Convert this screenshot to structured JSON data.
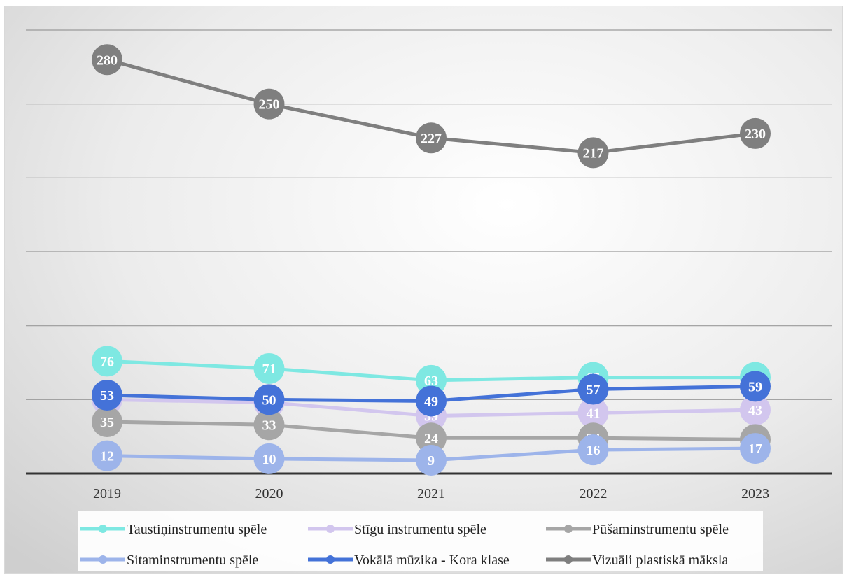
{
  "chart_data": {
    "type": "line",
    "title": "",
    "xlabel": "",
    "ylabel": "",
    "categories": [
      "2019",
      "2020",
      "2021",
      "2022",
      "2023"
    ],
    "ylim": [
      0,
      300
    ],
    "grid": true,
    "legend_position": "bottom",
    "series": [
      {
        "name": "Taustiņinstrumentu spēle",
        "values": [
          76,
          71,
          63,
          65,
          65
        ],
        "color": "#7ee8e2"
      },
      {
        "name": "Stīgu instrumentu spēle",
        "values": [
          50,
          48,
          39,
          41,
          43
        ],
        "color": "#d2c6ee"
      },
      {
        "name": "Pūšaminstrumentu spēle",
        "values": [
          35,
          33,
          24,
          24,
          23
        ],
        "color": "#a6a6a6"
      },
      {
        "name": "Sitaminstrumentu spēle",
        "values": [
          12,
          10,
          9,
          16,
          17
        ],
        "color": "#9db4ea"
      },
      {
        "name": "Vokālā mūzika - Kora klase",
        "values": [
          53,
          50,
          49,
          57,
          59
        ],
        "color": "#4472d8"
      },
      {
        "name": "Vizuāli plastiskā māksla",
        "values": [
          280,
          250,
          227,
          217,
          230
        ],
        "color": "#7f7f7f"
      }
    ]
  }
}
